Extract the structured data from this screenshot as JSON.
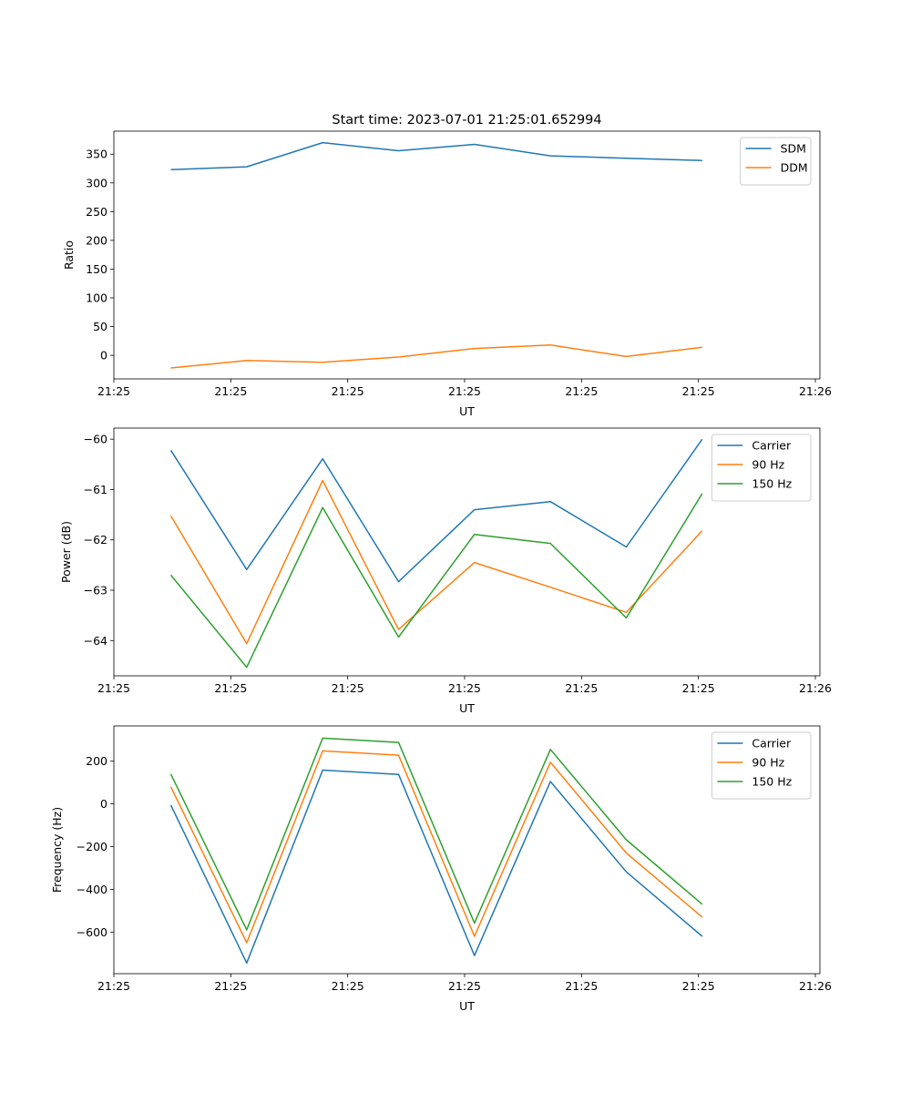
{
  "chart_data": [
    {
      "type": "line",
      "title": "Start time: 2023-07-01 21:25:01.652994",
      "xlabel": "UT",
      "ylabel": "Ratio",
      "xlim": [
        0,
        9.3
      ],
      "ylim": [
        -41,
        390
      ],
      "x": [
        0.75,
        1.75,
        2.75,
        3.75,
        4.75,
        5.75,
        6.75,
        7.75
      ],
      "x_ticks": [
        {
          "value": 0,
          "label": "21:25"
        },
        {
          "value": 1.54,
          "label": "21:25"
        },
        {
          "value": 3.08,
          "label": "21:25"
        },
        {
          "value": 4.62,
          "label": "21:25"
        },
        {
          "value": 6.16,
          "label": "21:25"
        },
        {
          "value": 7.7,
          "label": "21:25"
        },
        {
          "value": 9.24,
          "label": "21:26"
        }
      ],
      "y_ticks": [
        {
          "value": 0,
          "label": "0"
        },
        {
          "value": 50,
          "label": "50"
        },
        {
          "value": 100,
          "label": "100"
        },
        {
          "value": 150,
          "label": "150"
        },
        {
          "value": 200,
          "label": "200"
        },
        {
          "value": 250,
          "label": "250"
        },
        {
          "value": 300,
          "label": "300"
        },
        {
          "value": 350,
          "label": "350"
        }
      ],
      "legend_position": "top-right",
      "grid": false,
      "series": [
        {
          "name": "SDM",
          "color": "#1f77b4",
          "values": [
            323,
            328,
            370,
            356,
            367,
            347,
            343,
            339
          ]
        },
        {
          "name": "DDM",
          "color": "#ff7f0e",
          "values": [
            -22,
            -9,
            -12,
            -3,
            12,
            18,
            -2,
            14
          ]
        }
      ]
    },
    {
      "type": "line",
      "title": "",
      "xlabel": "UT",
      "ylabel": "Power (dB)",
      "xlim": [
        0,
        9.3
      ],
      "ylim": [
        -64.7,
        -59.78
      ],
      "x": [
        0.75,
        1.75,
        2.75,
        3.75,
        4.75,
        5.75,
        6.75,
        7.75
      ],
      "x_ticks": [
        {
          "value": 0,
          "label": "21:25"
        },
        {
          "value": 1.54,
          "label": "21:25"
        },
        {
          "value": 3.08,
          "label": "21:25"
        },
        {
          "value": 4.62,
          "label": "21:25"
        },
        {
          "value": 6.16,
          "label": "21:25"
        },
        {
          "value": 7.7,
          "label": "21:25"
        },
        {
          "value": 9.24,
          "label": "21:26"
        }
      ],
      "y_ticks": [
        {
          "value": -64,
          "label": "−64"
        },
        {
          "value": -63,
          "label": "−63"
        },
        {
          "value": -62,
          "label": "−62"
        },
        {
          "value": -61,
          "label": "−61"
        },
        {
          "value": -60,
          "label": "−60"
        }
      ],
      "legend_position": "top-right",
      "grid": false,
      "series": [
        {
          "name": "Carrier",
          "color": "#1f77b4",
          "values": [
            -60.22,
            -62.59,
            -60.39,
            -62.83,
            -61.4,
            -61.24,
            -62.14,
            -60.0
          ]
        },
        {
          "name": "90 Hz",
          "color": "#ff7f0e",
          "values": [
            -61.52,
            -64.06,
            -60.82,
            -63.78,
            -62.45,
            -62.94,
            -63.44,
            -61.82
          ]
        },
        {
          "name": "150 Hz",
          "color": "#2ca02c",
          "values": [
            -62.7,
            -64.53,
            -61.36,
            -63.93,
            -61.89,
            -62.07,
            -63.55,
            -61.08
          ]
        }
      ]
    },
    {
      "type": "line",
      "title": "",
      "xlabel": "UT",
      "ylabel": "Frequency (Hz)",
      "xlim": [
        0,
        9.3
      ],
      "ylim": [
        -795,
        365
      ],
      "x": [
        0.75,
        1.75,
        2.75,
        3.75,
        4.75,
        5.75,
        6.75,
        7.75
      ],
      "x_ticks": [
        {
          "value": 0,
          "label": "21:25"
        },
        {
          "value": 1.54,
          "label": "21:25"
        },
        {
          "value": 3.08,
          "label": "21:25"
        },
        {
          "value": 4.62,
          "label": "21:25"
        },
        {
          "value": 6.16,
          "label": "21:25"
        },
        {
          "value": 7.7,
          "label": "21:25"
        },
        {
          "value": 9.24,
          "label": "21:26"
        }
      ],
      "y_ticks": [
        {
          "value": -600,
          "label": "−600"
        },
        {
          "value": -400,
          "label": "−400"
        },
        {
          "value": -200,
          "label": "−200"
        },
        {
          "value": 0,
          "label": "0"
        },
        {
          "value": 200,
          "label": "200"
        }
      ],
      "legend_position": "top-right",
      "grid": false,
      "series": [
        {
          "name": "Carrier",
          "color": "#1f77b4",
          "values": [
            -5,
            -745,
            158,
            138,
            -710,
            105,
            -318,
            -620
          ]
        },
        {
          "name": "90 Hz",
          "color": "#ff7f0e",
          "values": [
            80,
            -650,
            248,
            228,
            -620,
            195,
            -230,
            -530
          ]
        },
        {
          "name": "150 Hz",
          "color": "#2ca02c",
          "values": [
            140,
            -590,
            308,
            288,
            -558,
            255,
            -168,
            -470
          ]
        }
      ]
    }
  ]
}
